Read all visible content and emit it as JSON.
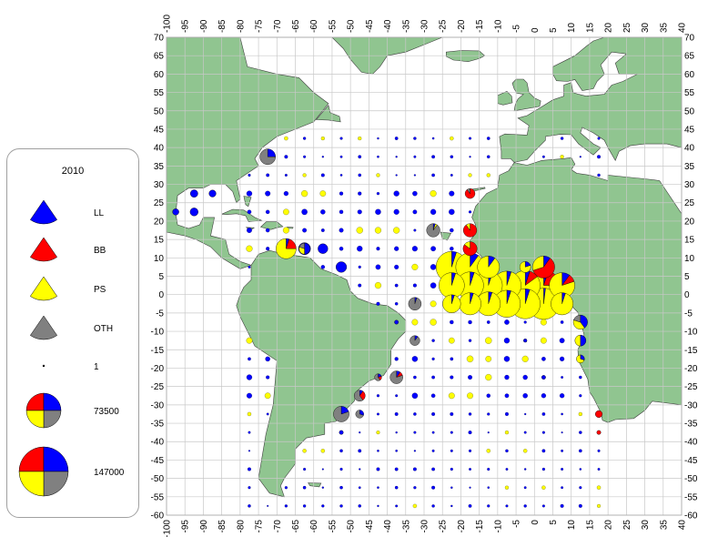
{
  "legend": {
    "title": "2010",
    "gear_entries": [
      {
        "label": "LL",
        "color": "#0000ff"
      },
      {
        "label": "BB",
        "color": "#ff0000"
      },
      {
        "label": "PS",
        "color": "#ffff00"
      },
      {
        "label": "OTH",
        "color": "#808080"
      }
    ],
    "size_entries": [
      {
        "label": "1",
        "value": 1
      },
      {
        "label": "73500",
        "value": 73500
      },
      {
        "label": "147000",
        "value": 147000
      }
    ]
  },
  "axes": {
    "lon_ticks": [
      -100,
      -95,
      -90,
      -85,
      -80,
      -75,
      -70,
      -65,
      -60,
      -55,
      -50,
      -45,
      -40,
      -35,
      -30,
      -25,
      -20,
      -15,
      -10,
      -5,
      0,
      5,
      10,
      15,
      20,
      25,
      30,
      35,
      40
    ],
    "lat_ticks": [
      70,
      65,
      60,
      55,
      50,
      45,
      40,
      35,
      30,
      25,
      20,
      15,
      10,
      5,
      0,
      -5,
      -10,
      -15,
      -20,
      -25,
      -30,
      -35,
      -40,
      -45,
      -50,
      -55,
      -60
    ],
    "lon_range": [
      -100,
      40
    ],
    "lat_range": [
      -60,
      70
    ],
    "grid": true
  },
  "colors": {
    "land": "#90c590",
    "land_edge": "#404040",
    "ocean": "#ffffff",
    "grid": "#c8c8c8"
  },
  "catches": [
    {
      "lon": -72.5,
      "lat": 37.5,
      "total": 30000,
      "LL": 0.25,
      "BB": 0,
      "PS": 0,
      "OTH": 0.75
    },
    {
      "lon": -62.5,
      "lat": 12.5,
      "total": 18000,
      "LL": 1,
      "BB": 0,
      "PS": 0,
      "OTH": 0
    },
    {
      "lon": -57.5,
      "lat": 12.5,
      "total": 12000,
      "LL": 1,
      "BB": 0,
      "PS": 0,
      "OTH": 0
    },
    {
      "lon": -52.5,
      "lat": 7.5,
      "total": 14000,
      "LL": 1,
      "BB": 0,
      "PS": 0,
      "OTH": 0
    },
    {
      "lon": -67.5,
      "lat": 12.5,
      "total": 50000,
      "LL": 0.05,
      "BB": 0.2,
      "PS": 0.75,
      "OTH": 0
    },
    {
      "lon": -62.5,
      "lat": 12.5,
      "total": 15000,
      "LL": 0.5,
      "BB": 0,
      "PS": 0.3,
      "OTH": 0.2
    },
    {
      "lon": -97.5,
      "lat": 22.5,
      "total": 5000,
      "LL": 1,
      "BB": 0,
      "PS": 0,
      "OTH": 0
    },
    {
      "lon": -92.5,
      "lat": 22.5,
      "total": 8000,
      "LL": 1,
      "BB": 0,
      "PS": 0,
      "OTH": 0
    },
    {
      "lon": -92.5,
      "lat": 27.5,
      "total": 7000,
      "LL": 1,
      "BB": 0,
      "PS": 0,
      "OTH": 0
    },
    {
      "lon": -87.5,
      "lat": 27.5,
      "total": 6000,
      "LL": 1,
      "BB": 0,
      "PS": 0,
      "OTH": 0
    },
    {
      "lon": -27.5,
      "lat": 17.5,
      "total": 22000,
      "LL": 0.05,
      "BB": 0,
      "PS": 0.05,
      "OTH": 0.9
    },
    {
      "lon": -17.5,
      "lat": 27.5,
      "total": 12000,
      "LL": 0,
      "BB": 0.9,
      "PS": 0,
      "OTH": 0.1
    },
    {
      "lon": -17.5,
      "lat": 17.5,
      "total": 22000,
      "LL": 0,
      "BB": 0.9,
      "PS": 0.1,
      "OTH": 0
    },
    {
      "lon": -17.5,
      "lat": 12.5,
      "total": 24000,
      "LL": 0,
      "BB": 0.85,
      "PS": 0.15,
      "OTH": 0
    },
    {
      "lon": -22.5,
      "lat": 7.5,
      "total": 120000,
      "LL": 0.05,
      "BB": 0,
      "PS": 0.95,
      "OTH": 0
    },
    {
      "lon": -17.5,
      "lat": 7.5,
      "total": 100000,
      "LL": 0.1,
      "BB": 0,
      "PS": 0.9,
      "OTH": 0
    },
    {
      "lon": -12.5,
      "lat": 7.5,
      "total": 60000,
      "LL": 0.1,
      "BB": 0,
      "PS": 0.9,
      "OTH": 0
    },
    {
      "lon": 2.5,
      "lat": 7.5,
      "total": 60000,
      "LL": 0.1,
      "BB": 0.6,
      "PS": 0.3,
      "OTH": 0
    },
    {
      "lon": -2.5,
      "lat": 7.5,
      "total": 15000,
      "LL": 0.2,
      "BB": 0,
      "PS": 0.8,
      "OTH": 0
    },
    {
      "lon": -22.5,
      "lat": 2.5,
      "total": 80000,
      "LL": 0.05,
      "BB": 0,
      "PS": 0.95,
      "OTH": 0
    },
    {
      "lon": -17.5,
      "lat": 2.5,
      "total": 90000,
      "LL": 0.05,
      "BB": 0,
      "PS": 0.95,
      "OTH": 0
    },
    {
      "lon": -12.5,
      "lat": 2.5,
      "total": 95000,
      "LL": 0.05,
      "BB": 0,
      "PS": 0.95,
      "OTH": 0
    },
    {
      "lon": -7.5,
      "lat": 2.5,
      "total": 100000,
      "LL": 0.05,
      "BB": 0,
      "PS": 0.95,
      "OTH": 0
    },
    {
      "lon": -2.5,
      "lat": 2.5,
      "total": 110000,
      "LL": 0.05,
      "BB": 0.1,
      "PS": 0.85,
      "OTH": 0
    },
    {
      "lon": 2.5,
      "lat": 2.5,
      "total": 120000,
      "LL": 0.05,
      "BB": 0.2,
      "PS": 0.75,
      "OTH": 0
    },
    {
      "lon": 7.5,
      "lat": 2.5,
      "total": 80000,
      "LL": 0.1,
      "BB": 0.1,
      "PS": 0.8,
      "OTH": 0
    },
    {
      "lon": -22.5,
      "lat": -2.5,
      "total": 40000,
      "LL": 0.05,
      "BB": 0,
      "PS": 0.95,
      "OTH": 0
    },
    {
      "lon": -17.5,
      "lat": -2.5,
      "total": 60000,
      "LL": 0.05,
      "BB": 0,
      "PS": 0.95,
      "OTH": 0
    },
    {
      "lon": -12.5,
      "lat": -2.5,
      "total": 70000,
      "LL": 0.05,
      "BB": 0,
      "PS": 0.95,
      "OTH": 0
    },
    {
      "lon": -7.5,
      "lat": -2.5,
      "total": 90000,
      "LL": 0.05,
      "BB": 0,
      "PS": 0.95,
      "OTH": 0
    },
    {
      "lon": -2.5,
      "lat": -2.5,
      "total": 110000,
      "LL": 0.05,
      "BB": 0,
      "PS": 0.95,
      "OTH": 0
    },
    {
      "lon": 2.5,
      "lat": -2.5,
      "total": 120000,
      "LL": 0.02,
      "BB": 0,
      "PS": 0.98,
      "OTH": 0
    },
    {
      "lon": 7.5,
      "lat": -2.5,
      "total": 60000,
      "LL": 0.05,
      "BB": 0,
      "PS": 0.95,
      "OTH": 0
    },
    {
      "lon": 12.5,
      "lat": -7.5,
      "total": 25000,
      "LL": 0.4,
      "BB": 0,
      "PS": 0.4,
      "OTH": 0.2
    },
    {
      "lon": 12.5,
      "lat": -12.5,
      "total": 15000,
      "LL": 0.5,
      "BB": 0,
      "PS": 0.5,
      "OTH": 0
    },
    {
      "lon": 12.5,
      "lat": -17.5,
      "total": 8000,
      "LL": 0.3,
      "BB": 0,
      "PS": 0.7,
      "OTH": 0
    },
    {
      "lon": -32.5,
      "lat": -2.5,
      "total": 20000,
      "LL": 0.05,
      "BB": 0,
      "PS": 0,
      "OTH": 0.95
    },
    {
      "lon": -32.5,
      "lat": -12.5,
      "total": 12000,
      "LL": 0.1,
      "BB": 0,
      "PS": 0,
      "OTH": 0.9
    },
    {
      "lon": -37.5,
      "lat": -22.5,
      "total": 20000,
      "LL": 0.1,
      "BB": 0.1,
      "PS": 0,
      "OTH": 0.8
    },
    {
      "lon": -42.5,
      "lat": -22.5,
      "total": 6000,
      "LL": 0.2,
      "BB": 0.2,
      "PS": 0,
      "OTH": 0.6
    },
    {
      "lon": -47.5,
      "lat": -27.5,
      "total": 15000,
      "LL": 0.1,
      "BB": 0.3,
      "PS": 0,
      "OTH": 0.6
    },
    {
      "lon": -52.5,
      "lat": -32.5,
      "total": 30000,
      "LL": 0.2,
      "BB": 0,
      "PS": 0,
      "OTH": 0.8
    },
    {
      "lon": -47.5,
      "lat": -32.5,
      "total": 8000,
      "LL": 0.3,
      "BB": 0,
      "PS": 0,
      "OTH": 0.7
    },
    {
      "lon": 17.5,
      "lat": -32.5,
      "total": 6000,
      "LL": 0,
      "BB": 1,
      "PS": 0,
      "OTH": 0
    },
    {
      "lon": 17.5,
      "lat": -37.5,
      "total": 2000,
      "LL": 0,
      "BB": 1,
      "PS": 0,
      "OTH": 0
    },
    {
      "lon": -37.5,
      "lat": -7.5,
      "total": 2000,
      "LL": 1,
      "BB": 0,
      "PS": 0,
      "OTH": 0
    },
    {
      "lon": -52.5,
      "lat": -37.5,
      "total": 2000,
      "LL": 1,
      "BB": 0,
      "PS": 0,
      "OTH": 0
    },
    {
      "lon": 2.5,
      "lat": -22.5,
      "total": 2000,
      "LL": 1,
      "BB": 0,
      "PS": 0,
      "OTH": 0
    },
    {
      "lon": -2.5,
      "lat": -12.5,
      "total": 1500,
      "LL": 1,
      "BB": 0,
      "PS": 0,
      "OTH": 0
    }
  ]
}
